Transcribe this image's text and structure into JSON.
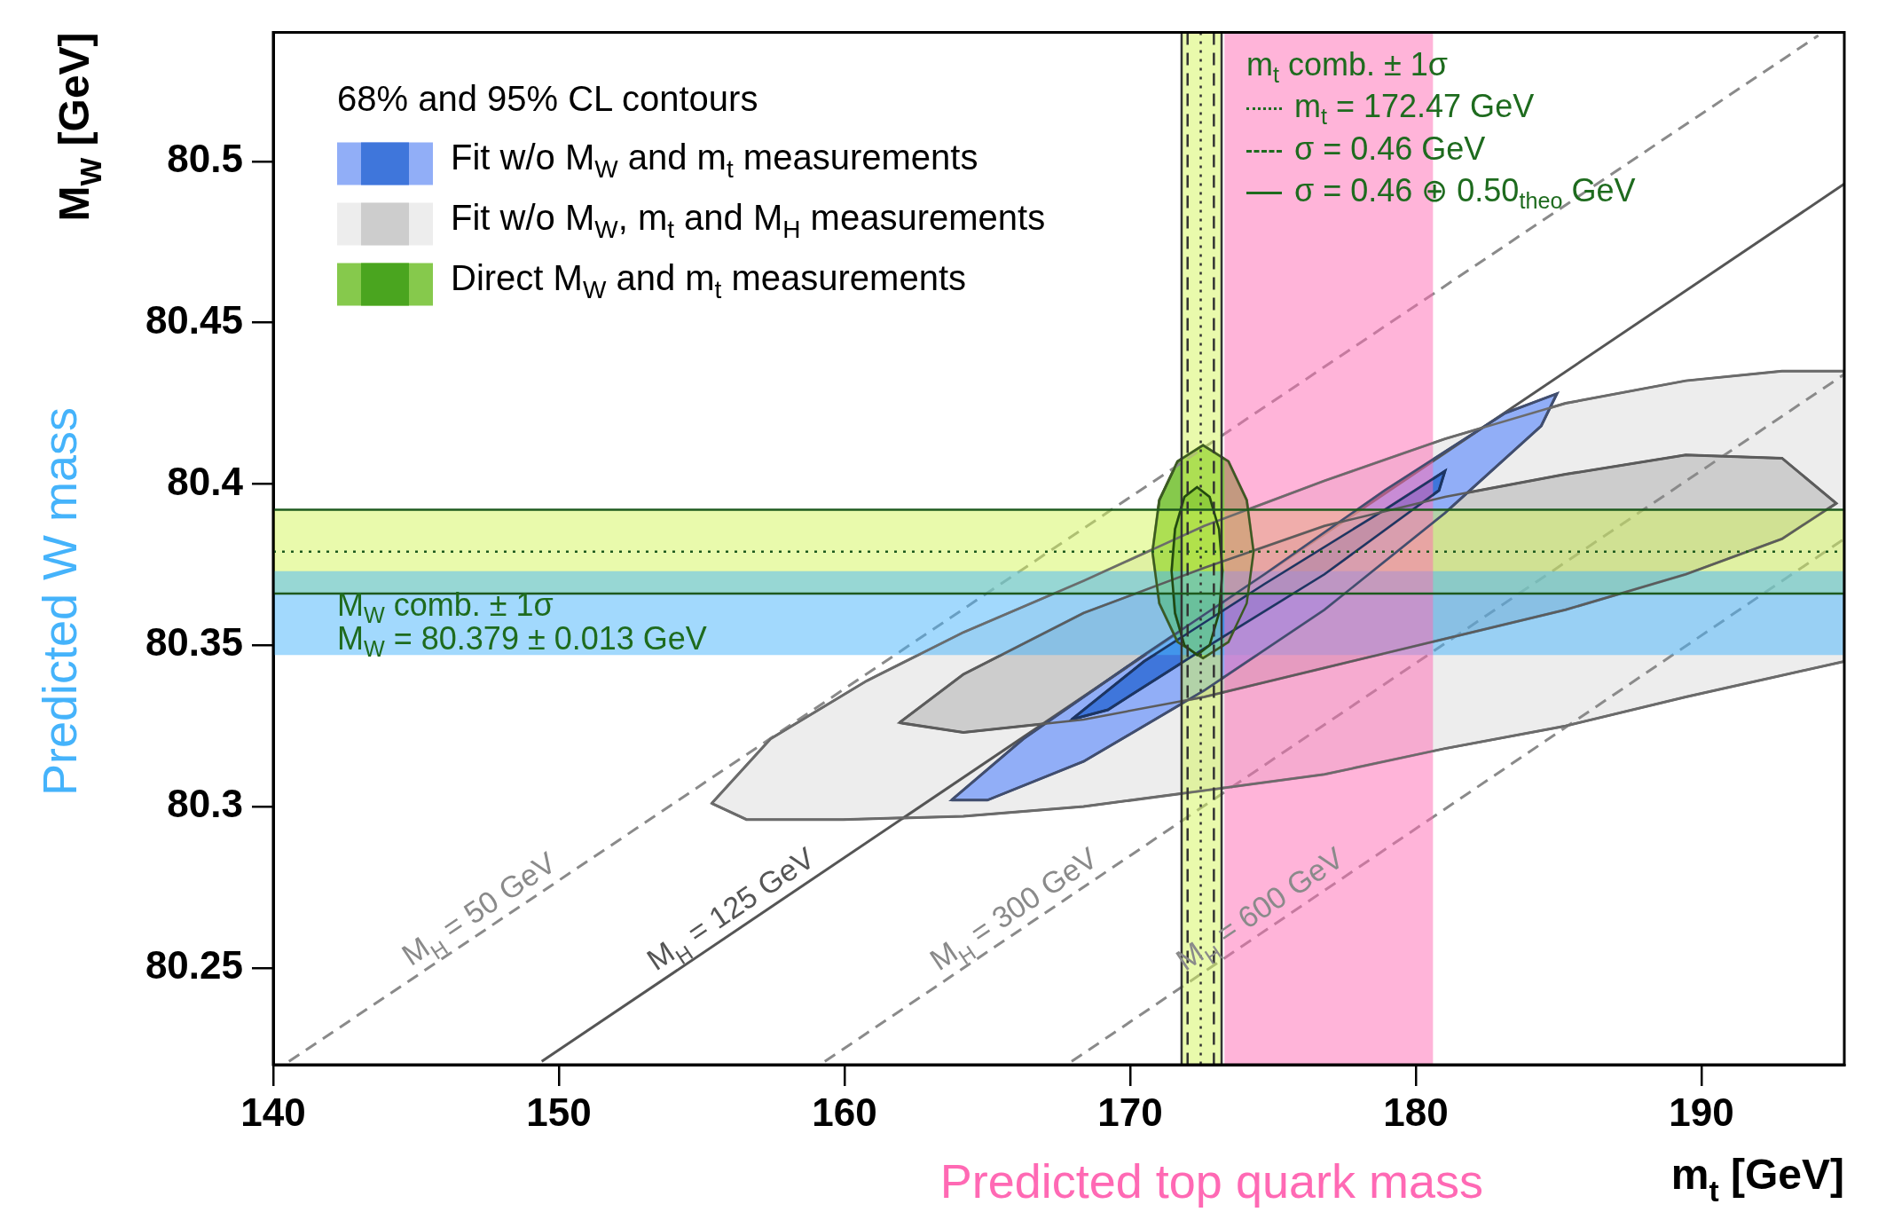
{
  "chart_data": {
    "type": "area",
    "xlabel": "m$_{t}$ [GeV]",
    "ylabel": "M$_{W}$ [GeV]",
    "legend_title": "68% and 95% CL contours",
    "legend": "top left",
    "grid": false,
    "xlim": [
      140,
      195
    ],
    "ylim": [
      80.22,
      80.54
    ],
    "xticks": [
      140,
      150,
      160,
      170,
      180,
      190
    ],
    "yticks": [
      80.25,
      80.3,
      80.35,
      80.4,
      80.45,
      80.5
    ],
    "series": [
      {
        "color": "#91aef7",
        "x": [
          163.74,
          166.26,
          170.48,
          174.7,
          178.91,
          183.13,
          184.94,
          184.39,
          181.02,
          176.8,
          172.59,
          168.37,
          165.0
        ],
        "values": [
          80.302,
          80.321,
          80.347,
          80.372,
          80.398,
          80.422,
          80.428,
          80.418,
          80.391,
          80.361,
          80.336,
          80.314,
          80.302
        ]
      },
      {
        "name": "Fit w/o M$_{W}$ and m$_{t}$ measurements",
        "color": "#3f76db",
        "x": [
          167.95,
          170.48,
          174.7,
          178.91,
          181.02,
          180.81,
          176.8,
          172.59,
          169.22
        ],
        "values": [
          80.327,
          80.345,
          80.369,
          80.392,
          80.404,
          80.398,
          80.372,
          80.349,
          80.33
        ]
      },
      {
        "color": "#ededed",
        "x": [
          155.35,
          157.41,
          160.78,
          164.16,
          168.37,
          172.59,
          176.8,
          181.02,
          185.24,
          189.45,
          192.82,
          195,
          195,
          189.45,
          185.24,
          181.02,
          176.8,
          172.59,
          168.37,
          164.16,
          159.94,
          156.57
        ],
        "values": [
          80.301,
          80.321,
          80.339,
          80.354,
          80.37,
          80.387,
          80.401,
          80.414,
          80.425,
          80.432,
          80.435,
          80.435,
          80.345,
          80.334,
          80.325,
          80.318,
          80.31,
          80.305,
          80.3,
          80.297,
          80.296,
          80.296
        ]
      },
      {
        "name": "Fit w/o M$_{W}$, m$_{t}$ and M$_{H}$ measurements",
        "color": "#cdcdcd",
        "x": [
          161.92,
          164.16,
          168.37,
          172.59,
          176.8,
          181.02,
          185.24,
          189.45,
          192.82,
          194.72,
          192.82,
          189.45,
          185.24,
          181.02,
          176.8,
          172.59,
          168.37,
          164.16
        ],
        "values": [
          80.326,
          80.341,
          80.36,
          80.374,
          80.387,
          80.396,
          80.403,
          80.409,
          80.408,
          80.394,
          80.383,
          80.372,
          80.361,
          80.352,
          80.343,
          80.334,
          80.327,
          80.323
        ]
      },
      {
        "color": "#86c94c",
        "x": [
          174.32,
          174.08,
          173.44,
          172.55,
          171.66,
          171.02,
          170.78,
          171.02,
          171.66,
          172.55,
          173.44,
          174.08
        ],
        "values": [
          80.379,
          80.395,
          80.407,
          80.412,
          80.407,
          80.395,
          80.379,
          80.363,
          80.351,
          80.346,
          80.351,
          80.363
        ]
      },
      {
        "name": "Direct M$_{W}$ and m$_{t}$ measurements",
        "color": "#4aa51f",
        "x": [
          173.23,
          173.11,
          172.78,
          172.34,
          171.9,
          171.57,
          171.45,
          171.57,
          171.9,
          172.34,
          172.78,
          173.11
        ],
        "values": [
          80.373,
          80.386,
          80.396,
          80.399,
          80.396,
          80.386,
          80.373,
          80.36,
          80.35,
          80.347,
          80.35,
          80.36
        ]
      },
      {
        "type": "line",
        "name": "M$_{H}$ = 50 GeV",
        "color": "#8a8a8a",
        "line_style": "dashed",
        "x": [
          140.55,
          194.09
        ],
        "values": [
          80.221,
          80.539
        ]
      },
      {
        "type": "line",
        "name": "M$_{H}$ = 125 GeV",
        "color": "#555555",
        "line_style": "solid",
        "x": [
          149.4,
          195
        ],
        "values": [
          80.221,
          80.493
        ]
      },
      {
        "type": "line",
        "name": "M$_{H}$ = 300 GeV",
        "color": "#8a8a8a",
        "line_style": "dashed",
        "x": [
          159.31,
          195
        ],
        "values": [
          80.221,
          80.434
        ]
      },
      {
        "type": "line",
        "name": "M$_{H}$ = 600 GeV",
        "color": "#8a8a8a",
        "line_style": "dashed",
        "x": [
          167.95,
          195
        ],
        "values": [
          80.221,
          80.383
        ]
      }
    ],
    "bands": [
      {
        "axis": "y",
        "from": 80.366,
        "to": 80.392,
        "color": "#d4f55a"
      },
      {
        "axis": "x",
        "from": 171.8,
        "to": 173.2,
        "color": "#d4f55a"
      },
      {
        "axis": "y",
        "from": 80.347,
        "to": 80.373,
        "color": "#45b3fb",
        "label": "Predicted W mass"
      },
      {
        "axis": "x",
        "from": 173.3,
        "to": 180.6,
        "color": "#ff69b4",
        "label": "Predicted top quark mass"
      }
    ],
    "ref_lines": [
      {
        "axis": "x",
        "value": 172.47,
        "color": "#333333",
        "line_style": "dotted"
      },
      {
        "axis": "x",
        "value": 172.01,
        "color": "#333333",
        "line_style": "dashed"
      },
      {
        "axis": "x",
        "value": 172.93,
        "color": "#333333",
        "line_style": "dashed"
      },
      {
        "axis": "x",
        "value": 171.8,
        "color": "#333333",
        "line_style": "solid"
      },
      {
        "axis": "x",
        "value": 173.2,
        "color": "#333333",
        "line_style": "solid"
      },
      {
        "axis": "y",
        "value": 80.379,
        "color": "#1e5a1e",
        "line_style": "dotted"
      },
      {
        "axis": "y",
        "value": 80.366,
        "color": "#1e5a1e",
        "line_style": "solid"
      },
      {
        "axis": "y",
        "value": 80.392,
        "color": "#1e5a1e",
        "line_style": "solid"
      }
    ],
    "annotations": [
      "m$_{t}$ comb. ± 1σ",
      "m$_{t}$ = 172.47 GeV",
      "σ = 0.46 GeV",
      "σ = 0.46 ⊕ 0.50$_{theo}$ GeV",
      "M$_{W}$ comb. ± 1σ",
      "M$_{W}$ = 80.379 ± 0.013 GeV"
    ]
  }
}
